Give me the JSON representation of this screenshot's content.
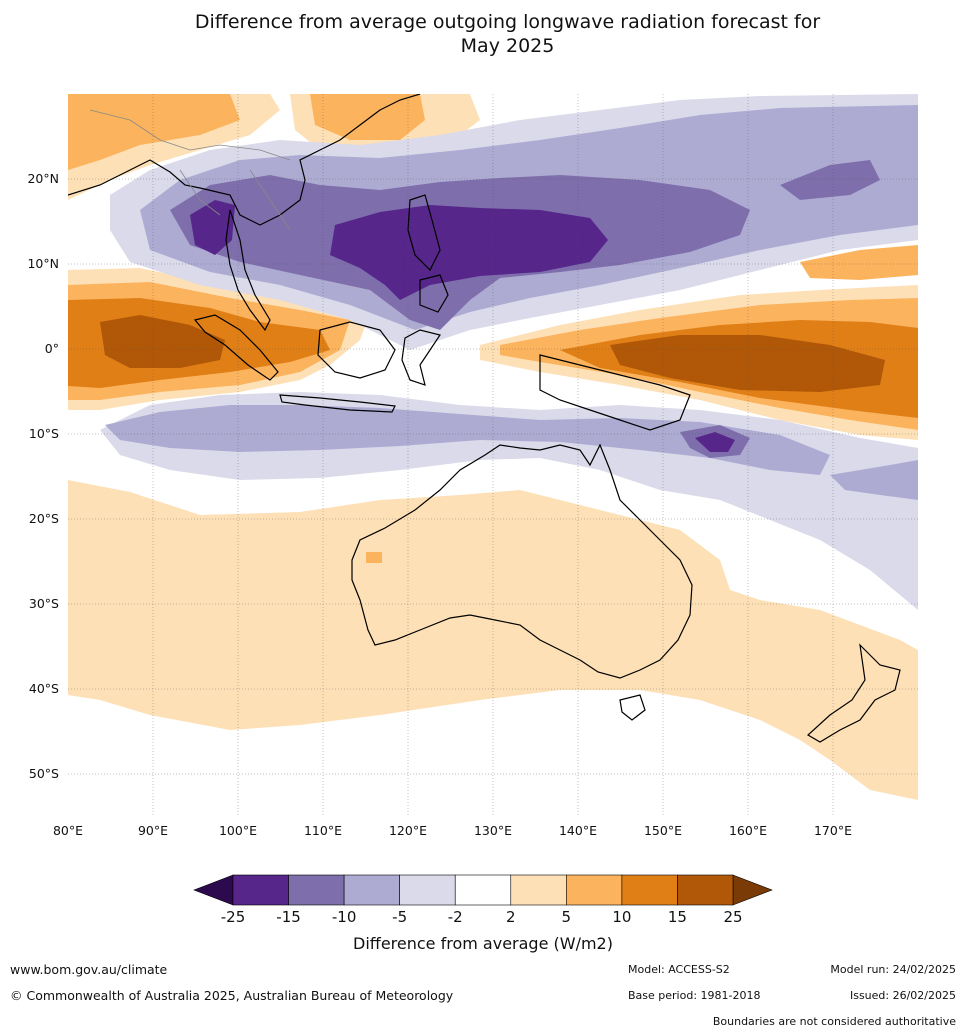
{
  "title": {
    "line1": "Difference from average outgoing longwave radiation forecast for",
    "line2": "May 2025"
  },
  "axes": {
    "lon_labels": [
      "80°E",
      "90°E",
      "100°E",
      "110°E",
      "120°E",
      "130°E",
      "140°E",
      "150°E",
      "160°E",
      "170°E"
    ],
    "lat_labels": [
      "20°N",
      "10°N",
      "0°",
      "10°S",
      "20°S",
      "30°S",
      "40°S",
      "50°S"
    ]
  },
  "colorbar": {
    "ticks": [
      "-25",
      "-15",
      "-10",
      "-5",
      "-2",
      "2",
      "5",
      "10",
      "15",
      "25"
    ],
    "colors": [
      "#56268b",
      "#7e6fac",
      "#aeabd3",
      "#dadaea",
      "#ffffff",
      "#fde0b6",
      "#fbb35e",
      "#df7f16",
      "#b05808"
    ],
    "under_color": "#2d0a4e",
    "over_color": "#7b3b06",
    "title": "Difference from average (W/m2)"
  },
  "footer": {
    "website": "www.bom.gov.au/climate",
    "copyright": "© Commonwealth of Australia 2025, Australian Bureau of Meteorology",
    "model": "Model: ACCESS-S2",
    "base_period": "Base period: 1981-2018",
    "model_run": "Model run: 24/02/2025",
    "issued": "Issued: 26/02/2025",
    "disclaimer": "Boundaries are not considered authoritative"
  }
}
